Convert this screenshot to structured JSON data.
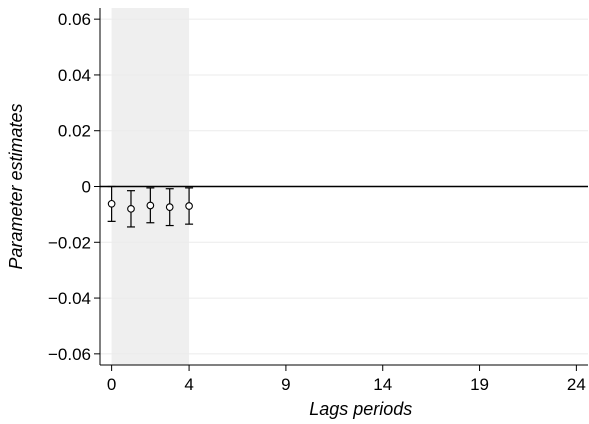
{
  "chart_data": {
    "type": "scatter",
    "title": "",
    "xlabel": "Lags periods",
    "ylabel": "Parameter estimates",
    "xlim": [
      -0.6,
      24.6
    ],
    "ylim": [
      -0.064,
      0.064
    ],
    "x_ticks": [
      0,
      4,
      9,
      14,
      19,
      24
    ],
    "x_tick_labels": [
      "0",
      "4",
      "9",
      "14",
      "19",
      "24"
    ],
    "y_ticks": [
      0.06,
      0.04,
      0.02,
      0,
      -0.02,
      -0.04,
      -0.06
    ],
    "y_tick_labels": [
      "0.06",
      "0.04",
      "0.02",
      "0",
      "−0.02",
      "−0.04",
      "−0.06"
    ],
    "shaded_region": {
      "x_start": 0,
      "x_end": 4
    },
    "reference_line_y": 0,
    "grid": true,
    "legend": "none",
    "series": [
      {
        "x": [
          0,
          1,
          2,
          3,
          4
        ],
        "y": [
          -0.0062,
          -0.008,
          -0.0068,
          -0.0074,
          -0.007
        ],
        "ci_low": [
          -0.0125,
          -0.0145,
          -0.013,
          -0.014,
          -0.0135
        ],
        "ci_high": [
          0.0,
          -0.0015,
          -0.0005,
          -0.0008,
          -0.0005
        ]
      }
    ],
    "colors": {
      "shade": "#efefef",
      "grid": "#ebebeb",
      "marks": "#000000"
    }
  }
}
